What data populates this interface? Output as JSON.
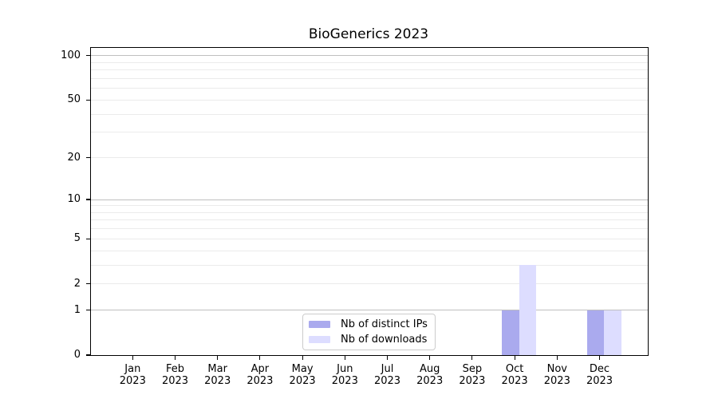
{
  "chart_data": {
    "type": "bar",
    "title": "BioGenerics 2023",
    "x": {
      "months": [
        "Jan",
        "Feb",
        "Mar",
        "Apr",
        "May",
        "Jun",
        "Jul",
        "Aug",
        "Sep",
        "Oct",
        "Nov",
        "Dec"
      ],
      "year": "2023"
    },
    "series": [
      {
        "name": "Nb of distinct IPs",
        "color": "#AAAAEE",
        "values": [
          0,
          0,
          0,
          0,
          0,
          0,
          0,
          0,
          0,
          1,
          0,
          1
        ]
      },
      {
        "name": "Nb of downloads",
        "color": "#DDDDFF",
        "values": [
          0,
          0,
          0,
          0,
          0,
          0,
          0,
          0,
          0,
          3,
          0,
          1
        ]
      }
    ],
    "yscale": "log1p",
    "yticks": [
      0,
      1,
      2,
      5,
      10,
      20,
      50,
      100
    ],
    "ylim": [
      0,
      113
    ],
    "grid": {
      "orientation": "horizontal",
      "major_lines_at": [
        1,
        10,
        100
      ],
      "minor_lines_at": [
        2,
        3,
        4,
        5,
        6,
        7,
        8,
        9,
        20,
        30,
        40,
        50,
        60,
        70,
        80,
        90
      ]
    },
    "legend_position": "lower center",
    "colors": {
      "major_grid": "#bfbfbf",
      "minor_grid": "#ebebeb",
      "axis": "#000000",
      "background": "#ffffff"
    }
  }
}
